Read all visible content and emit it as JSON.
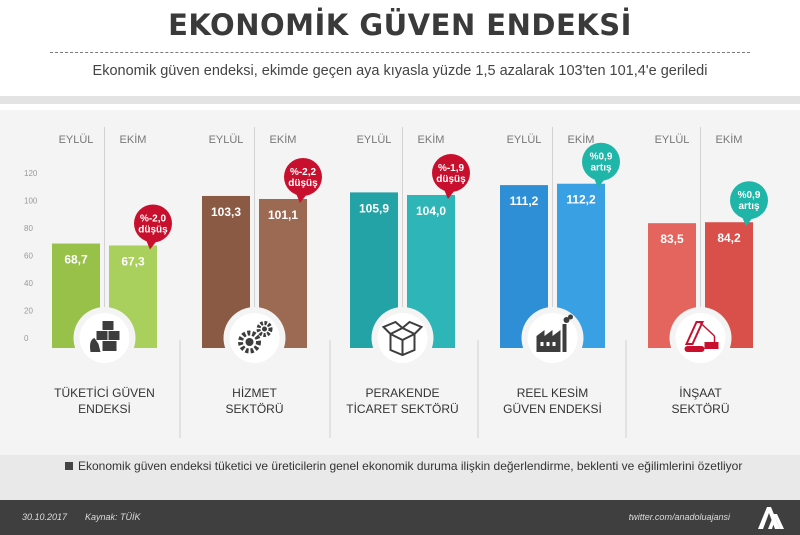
{
  "title": "EKONOMİK GÜVEN ENDEKSİ",
  "subtitle": "Ekonomik güven endeksi, ekimde geçen aya kıyasla yüzde 1,5 azalarak 103'ten 101,4'e geriledi",
  "chart_data": {
    "type": "bar",
    "ylim": [
      0,
      120
    ],
    "yticks": [
      "0",
      "20",
      "40",
      "60",
      "80",
      "100",
      "120"
    ],
    "series_labels": [
      "EYLÜL",
      "EKİM"
    ],
    "groups": [
      {
        "label_lines": [
          "TÜKETİCİ GÜVEN",
          "ENDEKSİ"
        ],
        "icon": "consumer-icon",
        "color_sep": "#98c14a",
        "color_oct": "#a9d05c",
        "values": [
          68.7,
          67.3
        ],
        "value_labels": [
          "68,7",
          "67,3"
        ],
        "change_lines": [
          "%-2,0",
          "düşüş"
        ],
        "change_dir": "down"
      },
      {
        "label_lines": [
          "HİZMET",
          "SEKTÖRÜ"
        ],
        "icon": "gears-icon",
        "color_sep": "#8a5a44",
        "color_oct": "#9c6a52",
        "values": [
          103.3,
          101.1
        ],
        "value_labels": [
          "103,3",
          "101,1"
        ],
        "change_lines": [
          "%-2,2",
          "düşüş"
        ],
        "change_dir": "down"
      },
      {
        "label_lines": [
          "PERAKENDE",
          "TİCARET SEKTÖRÜ"
        ],
        "icon": "box-icon",
        "color_sep": "#23a3a6",
        "color_oct": "#2db5b8",
        "values": [
          105.9,
          104.0
        ],
        "value_labels": [
          "105,9",
          "104,0"
        ],
        "change_lines": [
          "%-1,9",
          "düşüş"
        ],
        "change_dir": "down"
      },
      {
        "label_lines": [
          "REEL KESİM",
          "GÜVEN ENDEKSİ"
        ],
        "icon": "factory-icon",
        "color_sep": "#2f8fd6",
        "color_oct": "#3aa0e4",
        "values": [
          111.2,
          112.2
        ],
        "value_labels": [
          "111,2",
          "112,2"
        ],
        "change_lines": [
          "%0,9",
          "artış"
        ],
        "change_dir": "up"
      },
      {
        "label_lines": [
          "İNŞAAT",
          "SEKTÖRÜ"
        ],
        "icon": "crane-icon",
        "color_sep": "#e4645e",
        "color_oct": "#d9504a",
        "values": [
          83.5,
          84.2
        ],
        "value_labels": [
          "83,5",
          "84,2"
        ],
        "change_lines": [
          "%0,9",
          "artış"
        ],
        "change_dir": "up"
      }
    ],
    "colors": {
      "down": "#c8102e",
      "up": "#1fb5a8"
    }
  },
  "footnote": "Ekonomik güven endeksi tüketici ve üreticilerin genel ekonomik duruma ilişkin değerlendirme, beklenti ve eğilimlerini özetliyor",
  "footer": {
    "date": "30.10.2017",
    "source": "Kaynak: TÜİK",
    "twitter": "twitter.com/anadoluajansi",
    "logo": "AA"
  }
}
